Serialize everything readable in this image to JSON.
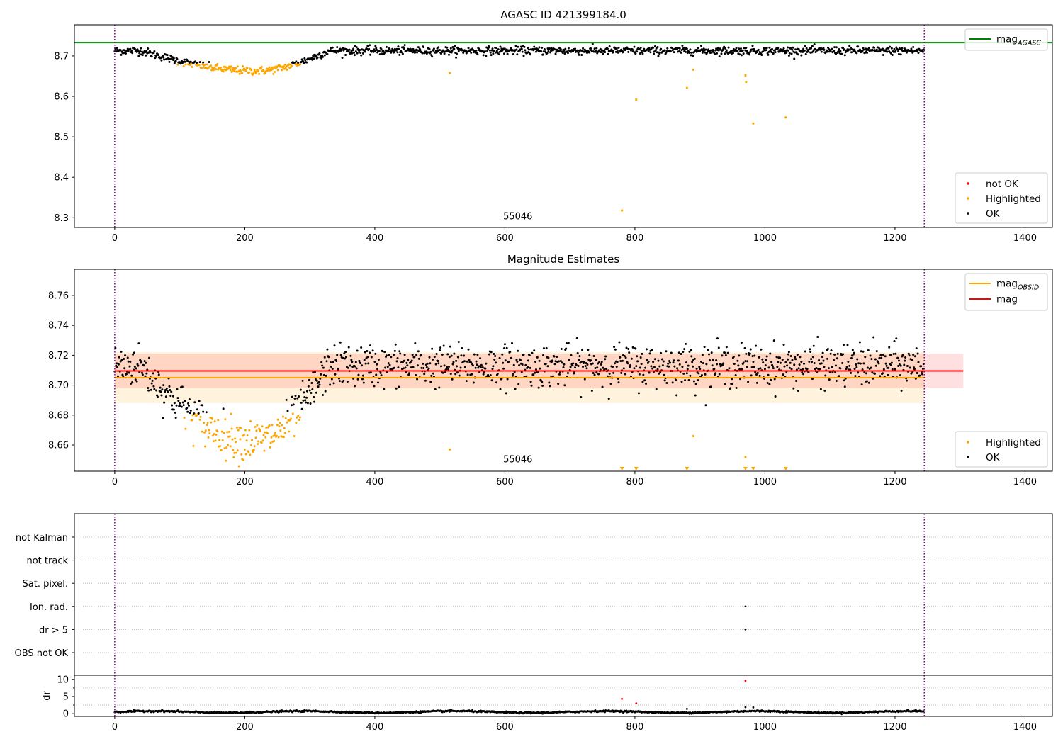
{
  "chart_data": [
    {
      "id": "agasc",
      "type": "scatter",
      "title": "AGASC ID 421399184.0",
      "xlim": [
        -62,
        1442
      ],
      "ylim": [
        8.276,
        8.777
      ],
      "xticks": [
        0,
        200,
        400,
        600,
        800,
        1000,
        1200,
        1400
      ],
      "yticks": [
        8.3,
        8.4,
        8.5,
        8.6,
        8.7
      ],
      "vlines": [
        0,
        1245
      ],
      "hline": {
        "name": "mag",
        "subscript": "AGASC",
        "value": 8.733,
        "color": "#008000"
      },
      "annotation": {
        "text": "55046",
        "x": 620,
        "y": 8.296
      },
      "legend_lines": [
        {
          "label": "mag",
          "subscript": "AGASC",
          "color": "#008000"
        }
      ],
      "legend_points": [
        {
          "label": "not OK",
          "color": "#ff0000"
        },
        {
          "label": "Highlighted",
          "color": "#ffa500"
        },
        {
          "label": "OK",
          "color": "#000000"
        }
      ],
      "series": {
        "ok": {
          "color": "#000000",
          "n_points": 1245,
          "base_level": 8.713,
          "noise": 0.005,
          "dip": {
            "start": 40,
            "min_at": 215,
            "end": 330,
            "depth": 0.05
          }
        },
        "highlighted": {
          "color": "#ffa500",
          "dip_range": [
            95,
            285
          ],
          "outliers": [
            [
              515,
              8.658
            ],
            [
              780,
              8.318
            ],
            [
              802,
              8.592
            ],
            [
              880,
              8.621
            ],
            [
              890,
              8.666
            ],
            [
              970,
              8.652
            ],
            [
              971,
              8.636
            ],
            [
              982,
              8.533
            ],
            [
              1032,
              8.548
            ]
          ]
        }
      }
    },
    {
      "id": "estimates",
      "type": "scatter",
      "title": "Magnitude Estimates",
      "xlim": [
        -62,
        1442
      ],
      "ylim": [
        8.6425,
        8.7775
      ],
      "xticks": [
        0,
        200,
        400,
        600,
        800,
        1000,
        1200,
        1400
      ],
      "yticks": [
        8.66,
        8.68,
        8.7,
        8.72,
        8.74,
        8.76
      ],
      "vlines": [
        0,
        1245
      ],
      "bands": [
        {
          "from": 8.688,
          "to": 8.722,
          "x": [
            0,
            1245
          ],
          "color": "#ffa500",
          "opacity": 0.13
        },
        {
          "from": 8.698,
          "to": 8.721,
          "x": [
            0,
            1305
          ],
          "color": "#ff0000",
          "opacity": 0.12
        }
      ],
      "hlines": [
        {
          "name": "mag",
          "subscript": "OBSID",
          "value": 8.705,
          "x": [
            0,
            1245
          ],
          "color": "#ffa500"
        },
        {
          "name": "mag",
          "value": 8.7095,
          "x": [
            0,
            1305
          ],
          "color": "#ff0000"
        }
      ],
      "annotation": {
        "text": "55046",
        "x": 620,
        "y": 8.6485
      },
      "legend_lines": [
        {
          "label": "mag",
          "subscript": "OBSID",
          "color": "#ffa500"
        },
        {
          "label": "mag",
          "color": "#ff0000"
        }
      ],
      "legend_points": [
        {
          "label": "Highlighted",
          "color": "#ffa500"
        },
        {
          "label": "OK",
          "color": "#000000"
        }
      ],
      "series": {
        "ok": {
          "color": "#000000",
          "n_points": 1245,
          "base_level": 8.713,
          "noise": 0.007,
          "dip": {
            "start": 40,
            "min_at": 215,
            "end": 330,
            "depth": 0.05
          }
        },
        "highlighted": {
          "color": "#ffa500",
          "dip_range": [
            95,
            285
          ],
          "outliers": [
            [
              515,
              8.657
            ],
            [
              890,
              8.666
            ],
            [
              970,
              8.652
            ]
          ]
        },
        "below_axis_markers": [
          780,
          802,
          880,
          970,
          982,
          1032
        ]
      }
    },
    {
      "id": "flags",
      "type": "scatter",
      "xlim": [
        -62,
        1442
      ],
      "xticks": [],
      "vlines": [
        0,
        1245
      ],
      "categories": [
        "not Kalman",
        "not track",
        "Sat. pixel.",
        "Ion. rad.",
        "dr > 5",
        "OBS not OK"
      ],
      "points": [
        {
          "x": 970,
          "category": "Ion. rad."
        },
        {
          "x": 970,
          "category": "dr > 5"
        }
      ]
    },
    {
      "id": "dr",
      "type": "scatter",
      "ylabel": "dr",
      "xlim": [
        -62,
        1442
      ],
      "ylim": [
        -0.8,
        11.2
      ],
      "xticks": [
        0,
        200,
        400,
        600,
        800,
        1000,
        1200,
        1400
      ],
      "yticks": [
        0,
        5,
        10
      ],
      "vlines": [
        0,
        1245
      ],
      "series": {
        "ok": {
          "color": "#000000",
          "n_points": 1245,
          "base_level": 0.5
        },
        "extra_points": [
          [
            780,
            4.3,
            "#ff0000"
          ],
          [
            802,
            3.0,
            "#ff0000"
          ],
          [
            970,
            9.6,
            "#ff0000"
          ],
          [
            970,
            1.9,
            "#000000"
          ],
          [
            982,
            1.8,
            "#000000"
          ],
          [
            880,
            1.4,
            "#000000"
          ]
        ]
      }
    }
  ]
}
